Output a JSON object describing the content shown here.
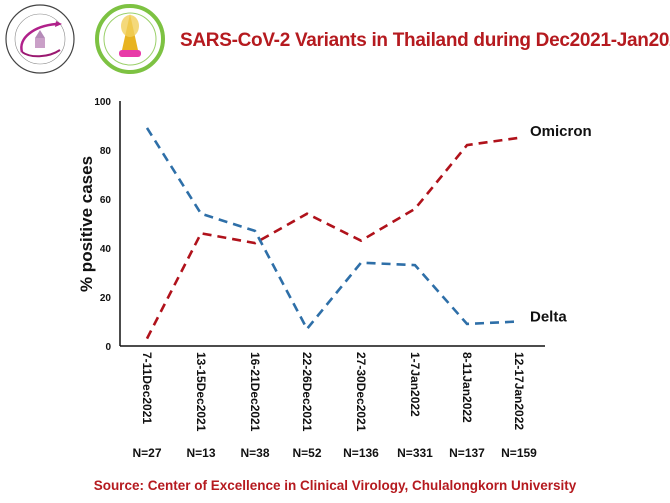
{
  "header": {
    "title": "SARS-CoV-2 Variants in Thailand during Dec2021-Jan2022",
    "logos": [
      "center-of-excellence-clinical-virology-logo",
      "faculty-of-medicine-chulalongkorn-logo"
    ]
  },
  "footer": {
    "source": "Source: Center of Excellence in Clinical Virology, Chulalongkorn University"
  },
  "colors": {
    "omicron": "#b0121b",
    "delta": "#2e6fa8",
    "title": "#b51a1f"
  },
  "chart_data": {
    "type": "line",
    "title": "SARS-CoV-2 Variants in Thailand during Dec2021-Jan2022",
    "xlabel": "",
    "ylabel": "% positive cases",
    "ylim": [
      0,
      100
    ],
    "yticks": [
      0,
      20,
      40,
      60,
      80,
      100
    ],
    "grid": false,
    "legend": "inline labels at right end of each series",
    "categories": [
      "7-11Dec2021",
      "13-15Dec2021",
      "16-21Dec2021",
      "22-26Dec2021",
      "27-30Dec2021",
      "1-7Jan2022",
      "8-11Jan2022",
      "12-17Jan2022"
    ],
    "sample_sizes": [
      "N=27",
      "N=13",
      "N=38",
      "N=52",
      "N=136",
      "N=331",
      "N=137",
      "N=159"
    ],
    "series": [
      {
        "name": "Omicron",
        "style": "dashed",
        "values": [
          3,
          46,
          42,
          54,
          43,
          56,
          82,
          85
        ]
      },
      {
        "name": "Delta",
        "style": "dashed",
        "values": [
          89,
          54,
          47,
          7,
          34,
          33,
          9,
          10
        ]
      }
    ],
    "source": "Source: Center of Excellence in Clinical Virology, Chulalongkorn University"
  }
}
